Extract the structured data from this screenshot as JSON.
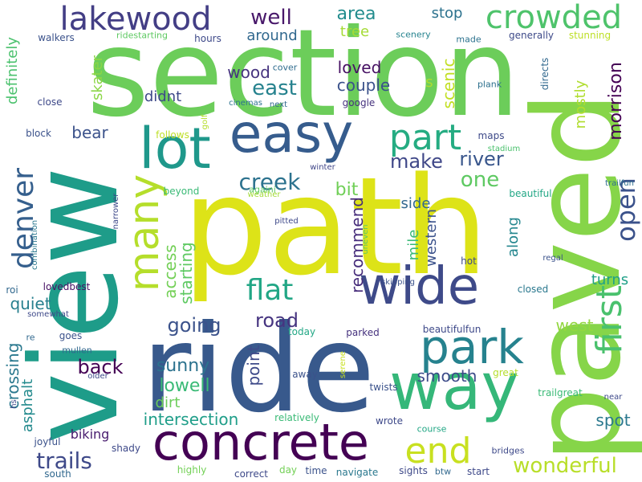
{
  "word_cloud": {
    "words": [
      {
        "text": "section",
        "color": "#6ccd5a",
        "orientation": "horizontal"
      },
      {
        "text": "view",
        "color": "#1e9c89",
        "orientation": "vertical"
      },
      {
        "text": "path",
        "color": "#dde318",
        "orientation": "horizontal"
      },
      {
        "text": "ride",
        "color": "#38598c",
        "orientation": "horizontal"
      },
      {
        "text": "paved",
        "color": "#86d549",
        "orientation": "vertical"
      },
      {
        "text": "concrete",
        "color": "#440154",
        "orientation": "horizontal"
      },
      {
        "text": "way",
        "color": "#35b779",
        "orientation": "horizontal"
      },
      {
        "text": "easy",
        "color": "#365c8d",
        "orientation": "horizontal"
      },
      {
        "text": "lot",
        "color": "#1f988b",
        "orientation": "horizontal"
      },
      {
        "text": "wide",
        "color": "#3e4a89",
        "orientation": "horizontal"
      },
      {
        "text": "park",
        "color": "#26828e",
        "orientation": "horizontal"
      },
      {
        "text": "many",
        "color": "#b5de2b",
        "orientation": "vertical"
      },
      {
        "text": "part",
        "color": "#25ac82",
        "orientation": "horizontal"
      },
      {
        "text": "end",
        "color": "#c8e020",
        "orientation": "horizontal"
      },
      {
        "text": "first",
        "color": "#4ac16d",
        "orientation": "vertical"
      },
      {
        "text": "lakewood",
        "color": "#433e85",
        "orientation": "horizontal"
      },
      {
        "text": "crowded",
        "color": "#4ec36b",
        "orientation": "horizontal"
      },
      {
        "text": "denver",
        "color": "#355f8d",
        "orientation": "vertical"
      },
      {
        "text": "flat",
        "color": "#21a685",
        "orientation": "horizontal"
      },
      {
        "text": "wonderful",
        "color": "#b8de29",
        "orientation": "horizontal"
      },
      {
        "text": "open",
        "color": "#3b528b",
        "orientation": "vertical"
      },
      {
        "text": "creek",
        "color": "#2c728e",
        "orientation": "horizontal"
      },
      {
        "text": "trails",
        "color": "#3e4989",
        "orientation": "horizontal"
      },
      {
        "text": "well",
        "color": "#48186a",
        "orientation": "horizontal"
      },
      {
        "text": "east",
        "color": "#26828e",
        "orientation": "horizontal"
      },
      {
        "text": "one",
        "color": "#5ec962",
        "orientation": "horizontal"
      },
      {
        "text": "river",
        "color": "#39568c",
        "orientation": "horizontal"
      },
      {
        "text": "make",
        "color": "#3f4788",
        "orientation": "horizontal"
      },
      {
        "text": "area",
        "color": "#228c8d",
        "orientation": "horizontal"
      },
      {
        "text": "going",
        "color": "#3b528b",
        "orientation": "horizontal"
      },
      {
        "text": "road",
        "color": "#463480",
        "orientation": "horizontal"
      },
      {
        "text": "back",
        "color": "#440154",
        "orientation": "horizontal"
      },
      {
        "text": "sunny",
        "color": "#2c728e",
        "orientation": "horizontal"
      },
      {
        "text": "lowell",
        "color": "#3aba76",
        "orientation": "horizontal"
      },
      {
        "text": "intersection",
        "color": "#1f9e89",
        "orientation": "horizontal"
      },
      {
        "text": "smooth",
        "color": "#3e4c8a",
        "orientation": "horizontal"
      },
      {
        "text": "morrison",
        "color": "#440154",
        "orientation": "vertical"
      },
      {
        "text": "recommend",
        "color": "#472d7b",
        "orientation": "vertical"
      },
      {
        "text": "crossing",
        "color": "#2a788e",
        "orientation": "vertical"
      },
      {
        "text": "access",
        "color": "#73d056",
        "orientation": "vertical"
      },
      {
        "text": "starting",
        "color": "#5ec962",
        "orientation": "vertical"
      },
      {
        "text": "point",
        "color": "#3e4a89",
        "orientation": "vertical"
      },
      {
        "text": "quiet",
        "color": "#277f8e",
        "orientation": "horizontal"
      },
      {
        "text": "bit",
        "color": "#70cf57",
        "orientation": "horizontal"
      },
      {
        "text": "side",
        "color": "#31688e",
        "orientation": "horizontal"
      },
      {
        "text": "mile",
        "color": "#39b977",
        "orientation": "vertical"
      },
      {
        "text": "western",
        "color": "#3b528b",
        "orientation": "vertical"
      },
      {
        "text": "along",
        "color": "#24868e",
        "orientation": "vertical"
      },
      {
        "text": "turns",
        "color": "#1fa088",
        "orientation": "horizontal"
      },
      {
        "text": "west",
        "color": "#93d741",
        "orientation": "horizontal"
      },
      {
        "text": "spot",
        "color": "#2a788e",
        "orientation": "horizontal"
      },
      {
        "text": "wood",
        "color": "#46337f",
        "orientation": "horizontal"
      },
      {
        "text": "loved",
        "color": "#471164",
        "orientation": "horizontal"
      },
      {
        "text": "couple",
        "color": "#3b528b",
        "orientation": "horizontal"
      },
      {
        "text": "around",
        "color": "#31688e",
        "orientation": "horizontal"
      },
      {
        "text": "tree",
        "color": "#a5db36",
        "orientation": "horizontal"
      },
      {
        "text": "stop",
        "color": "#2c728e",
        "orientation": "horizontal"
      },
      {
        "text": "scenic",
        "color": "#c2df23",
        "orientation": "vertical"
      },
      {
        "text": "mostly",
        "color": "#b0dd2f",
        "orientation": "vertical"
      },
      {
        "text": "didnt",
        "color": "#3e4989",
        "orientation": "horizontal"
      },
      {
        "text": "skater",
        "color": "#8bd646",
        "orientation": "vertical"
      },
      {
        "text": "bear",
        "color": "#3b528b",
        "orientation": "horizontal"
      },
      {
        "text": "definitely",
        "color": "#4ac16d",
        "orientation": "vertical"
      },
      {
        "text": "dirt",
        "color": "#6ccd5a",
        "orientation": "horizontal"
      },
      {
        "text": "asphalt",
        "color": "#238a8d",
        "orientation": "vertical"
      },
      {
        "text": "biking",
        "color": "#481c6e",
        "orientation": "horizontal"
      },
      {
        "text": "s",
        "color": "#addc30",
        "orientation": "horizontal"
      },
      {
        "text": "walkers",
        "color": "#3b528b",
        "orientation": "horizontal"
      },
      {
        "text": "hours",
        "color": "#3e4989",
        "orientation": "horizontal"
      },
      {
        "text": "ridestarting",
        "color": "#5ec962",
        "orientation": "horizontal"
      },
      {
        "text": "scenery",
        "color": "#25838e",
        "orientation": "horizontal"
      },
      {
        "text": "made",
        "color": "#2c728e",
        "orientation": "horizontal"
      },
      {
        "text": "generally",
        "color": "#3e4a89",
        "orientation": "horizontal"
      },
      {
        "text": "stunning",
        "color": "#bddf26",
        "orientation": "horizontal"
      },
      {
        "text": "cover",
        "color": "#2f6c8e",
        "orientation": "horizontal"
      },
      {
        "text": "directs",
        "color": "#31688e",
        "orientation": "vertical"
      },
      {
        "text": "plank",
        "color": "#2d708e",
        "orientation": "horizontal"
      },
      {
        "text": "close",
        "color": "#3e4989",
        "orientation": "horizontal"
      },
      {
        "text": "cinemas",
        "color": "#2c728e",
        "orientation": "horizontal"
      },
      {
        "text": "next",
        "color": "#31688e",
        "orientation": "horizontal"
      },
      {
        "text": "google",
        "color": "#46327e",
        "orientation": "horizontal"
      },
      {
        "text": "block",
        "color": "#3b528b",
        "orientation": "horizontal"
      },
      {
        "text": "follows",
        "color": "#bddf26",
        "orientation": "horizontal"
      },
      {
        "text": "golf",
        "color": "#b5de2b",
        "orientation": "vertical"
      },
      {
        "text": "maps",
        "color": "#3e4a89",
        "orientation": "horizontal"
      },
      {
        "text": "stadium",
        "color": "#4ac16d",
        "orientation": "horizontal"
      },
      {
        "text": "winter",
        "color": "#404688",
        "orientation": "horizontal"
      },
      {
        "text": "againi",
        "color": "#5ec962",
        "orientation": "horizontal"
      },
      {
        "text": "beautiful",
        "color": "#22a785",
        "orientation": "horizontal"
      },
      {
        "text": "weather",
        "color": "#a2da37",
        "orientation": "horizontal"
      },
      {
        "text": "beyond",
        "color": "#3aba76",
        "orientation": "horizontal"
      },
      {
        "text": "trailfun",
        "color": "#2e6f8e",
        "orientation": "horizontal"
      },
      {
        "text": "narrower",
        "color": "#3e4989",
        "orientation": "vertical"
      },
      {
        "text": "pitted",
        "color": "#3e4989",
        "orientation": "horizontal"
      },
      {
        "text": "combination",
        "color": "#2a788e",
        "orientation": "vertical"
      },
      {
        "text": "uneven",
        "color": "#5ec962",
        "orientation": "vertical"
      },
      {
        "text": "regal",
        "color": "#3b528b",
        "orientation": "horizontal"
      },
      {
        "text": "roi",
        "color": "#31688e",
        "orientation": "horizontal"
      },
      {
        "text": "lovedbest",
        "color": "#471164",
        "orientation": "horizontal"
      },
      {
        "text": "skipping",
        "color": "#3b528b",
        "orientation": "horizontal"
      },
      {
        "text": "hot",
        "color": "#3e4989",
        "orientation": "horizontal"
      },
      {
        "text": "closed",
        "color": "#2a788e",
        "orientation": "horizontal"
      },
      {
        "text": "somewhat",
        "color": "#3e4989",
        "orientation": "horizontal"
      },
      {
        "text": "re",
        "color": "#31688e",
        "orientation": "horizontal"
      },
      {
        "text": "goes",
        "color": "#3b528b",
        "orientation": "horizontal"
      },
      {
        "text": "mullen",
        "color": "#31688e",
        "orientation": "horizontal"
      },
      {
        "text": "today",
        "color": "#22a785",
        "orientation": "horizontal"
      },
      {
        "text": "parked",
        "color": "#46327e",
        "orientation": "horizontal"
      },
      {
        "text": "beautifulfun",
        "color": "#3e4989",
        "orientation": "horizontal"
      },
      {
        "text": "serene",
        "color": "#c8e020",
        "orientation": "vertical"
      },
      {
        "text": "older",
        "color": "#3e4989",
        "orientation": "horizontal"
      },
      {
        "text": "hs",
        "color": "#3e4989",
        "orientation": "vertical"
      },
      {
        "text": "away",
        "color": "#3b528b",
        "orientation": "horizontal"
      },
      {
        "text": "twists",
        "color": "#3b528b",
        "orientation": "horizontal"
      },
      {
        "text": "great",
        "color": "#b5de2b",
        "orientation": "horizontal"
      },
      {
        "text": "near",
        "color": "#3e4989",
        "orientation": "horizontal"
      },
      {
        "text": "relatively",
        "color": "#3aba76",
        "orientation": "horizontal"
      },
      {
        "text": "trailgreat",
        "color": "#3aba76",
        "orientation": "horizontal"
      },
      {
        "text": "wrote",
        "color": "#3e4989",
        "orientation": "horizontal"
      },
      {
        "text": "course",
        "color": "#22a785",
        "orientation": "horizontal"
      },
      {
        "text": "joyful",
        "color": "#3b528b",
        "orientation": "horizontal"
      },
      {
        "text": "bridges",
        "color": "#3e4989",
        "orientation": "horizontal"
      },
      {
        "text": "shady",
        "color": "#3e4989",
        "orientation": "horizontal"
      },
      {
        "text": "highly",
        "color": "#73d056",
        "orientation": "horizontal"
      },
      {
        "text": "day",
        "color": "#73d056",
        "orientation": "horizontal"
      },
      {
        "text": "time",
        "color": "#3b528b",
        "orientation": "horizontal"
      },
      {
        "text": "navigate",
        "color": "#2a788e",
        "orientation": "horizontal"
      },
      {
        "text": "sights",
        "color": "#3e4989",
        "orientation": "horizontal"
      },
      {
        "text": "btw",
        "color": "#31688e",
        "orientation": "horizontal"
      },
      {
        "text": "start",
        "color": "#3e4989",
        "orientation": "horizontal"
      },
      {
        "text": "south",
        "color": "#31688e",
        "orientation": "horizontal"
      },
      {
        "text": "correct",
        "color": "#3e4989",
        "orientation": "horizontal"
      }
    ]
  }
}
